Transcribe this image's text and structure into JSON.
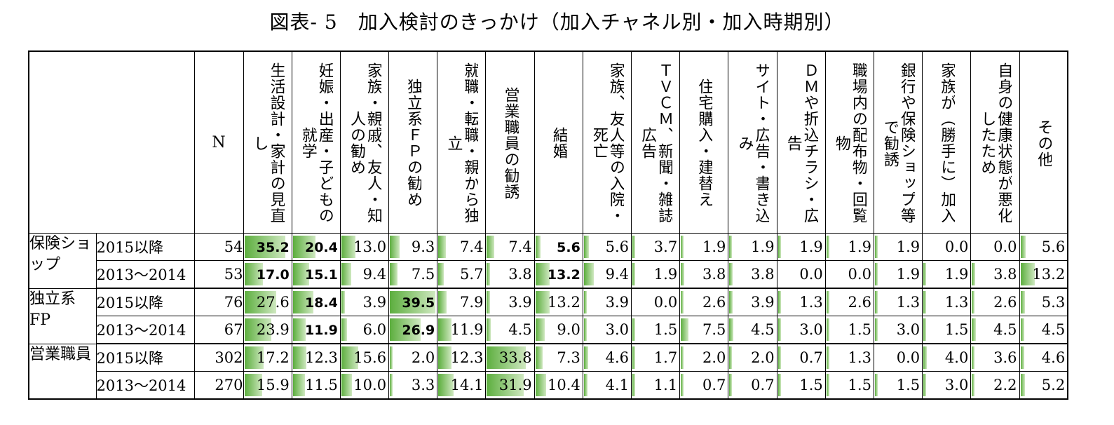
{
  "title": "図表- 5　加入検討のきっかけ（加入チャネル別・加入時期別）",
  "n_header": "N",
  "columns": [
    "生活設計・家計の見直し",
    "妊娠・出産・子どもの就学",
    "家族・親戚、友人・知人の勧め",
    "独立系ＦＰの勧め",
    "就職・転職・親から独立",
    "営業職員の勧誘",
    "結婚",
    "家族、友人等の入院・死亡",
    "ＴＶＣＭ、新聞・雑誌広告",
    "住宅購入・建替え",
    "サイト・広告・書き込み",
    "ＤＭや折込チラシ・広告",
    "職場内の配布物・回覧物",
    "銀行や保険ショップ等で勧誘",
    "家族が（勝手に）加入",
    "自身の健康状態が悪化したため",
    "その他"
  ],
  "groups": [
    {
      "name": "保険ショップ",
      "rows": [
        {
          "period": "2015以降",
          "n": "54",
          "values": [
            "35.2",
            "20.4",
            "13.0",
            "9.3",
            "7.4",
            "7.4",
            "5.6",
            "5.6",
            "3.7",
            "1.9",
            "1.9",
            "1.9",
            "1.9",
            "1.9",
            "0.0",
            "0.0",
            "5.6"
          ],
          "bold": [
            true,
            true,
            false,
            false,
            false,
            false,
            true,
            false,
            false,
            false,
            false,
            false,
            false,
            false,
            false,
            false,
            false
          ]
        },
        {
          "period": "2013～2014",
          "n": "53",
          "values": [
            "17.0",
            "15.1",
            "9.4",
            "7.5",
            "5.7",
            "3.8",
            "13.2",
            "9.4",
            "1.9",
            "3.8",
            "3.8",
            "0.0",
            "0.0",
            "1.9",
            "1.9",
            "3.8",
            "13.2"
          ],
          "bold": [
            true,
            true,
            false,
            false,
            false,
            false,
            true,
            false,
            false,
            false,
            false,
            false,
            false,
            false,
            false,
            false,
            false
          ]
        }
      ]
    },
    {
      "name": "独立系FP",
      "rows": [
        {
          "period": "2015以降",
          "n": "76",
          "values": [
            "27.6",
            "18.4",
            "3.9",
            "39.5",
            "7.9",
            "3.9",
            "13.2",
            "3.9",
            "0.0",
            "2.6",
            "3.9",
            "1.3",
            "2.6",
            "1.3",
            "1.3",
            "2.6",
            "5.3"
          ],
          "bold": [
            false,
            true,
            false,
            true,
            false,
            false,
            false,
            false,
            false,
            false,
            false,
            false,
            false,
            false,
            false,
            false,
            false
          ]
        },
        {
          "period": "2013～2014",
          "n": "67",
          "values": [
            "23.9",
            "11.9",
            "6.0",
            "26.9",
            "11.9",
            "4.5",
            "9.0",
            "3.0",
            "1.5",
            "7.5",
            "4.5",
            "3.0",
            "1.5",
            "3.0",
            "1.5",
            "4.5",
            "4.5"
          ],
          "bold": [
            false,
            true,
            false,
            true,
            false,
            false,
            false,
            false,
            false,
            false,
            false,
            false,
            false,
            false,
            false,
            false,
            false
          ]
        }
      ]
    },
    {
      "name": "営業職員",
      "rows": [
        {
          "period": "2015以降",
          "n": "302",
          "values": [
            "17.2",
            "12.3",
            "15.6",
            "2.0",
            "12.3",
            "33.8",
            "7.3",
            "4.6",
            "1.7",
            "2.0",
            "2.0",
            "0.7",
            "1.3",
            "0.0",
            "4.0",
            "3.6",
            "4.6"
          ],
          "bold": [
            false,
            false,
            false,
            false,
            false,
            false,
            false,
            false,
            false,
            false,
            false,
            false,
            false,
            false,
            false,
            false,
            false
          ]
        },
        {
          "period": "2013～2014",
          "n": "270",
          "values": [
            "15.9",
            "11.5",
            "10.0",
            "3.3",
            "14.1",
            "31.9",
            "10.4",
            "4.1",
            "1.1",
            "0.7",
            "0.7",
            "1.5",
            "1.5",
            "1.5",
            "3.0",
            "2.2",
            "5.2"
          ],
          "bold": [
            false,
            false,
            false,
            false,
            false,
            false,
            false,
            false,
            false,
            false,
            false,
            false,
            false,
            false,
            false,
            false,
            false
          ]
        }
      ]
    }
  ],
  "bar_color": "#5cae3e"
}
